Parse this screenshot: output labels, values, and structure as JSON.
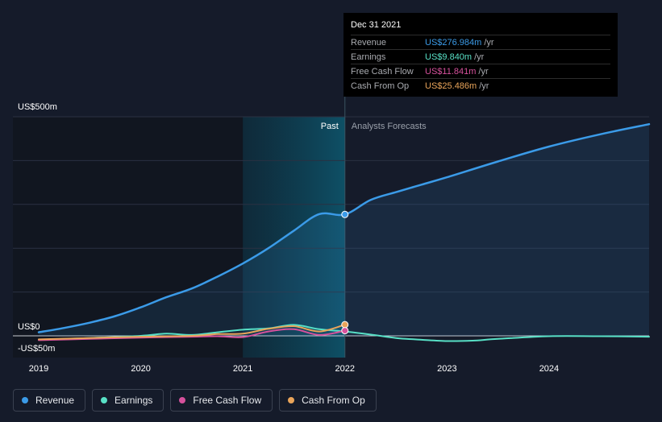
{
  "chart_data": {
    "type": "line",
    "x_range": [
      2019,
      2024.98
    ],
    "ylim": [
      -50,
      500
    ],
    "y_tick_labels": [
      {
        "value": 500,
        "label": "US$500m"
      },
      {
        "value": 0,
        "label": "US$0"
      },
      {
        "value": -50,
        "label": "-US$50m"
      }
    ],
    "x_ticks": [
      {
        "value": 2019,
        "label": "2019"
      },
      {
        "value": 2020,
        "label": "2020"
      },
      {
        "value": 2021,
        "label": "2021"
      },
      {
        "value": 2022,
        "label": "2022"
      },
      {
        "value": 2023,
        "label": "2023"
      },
      {
        "value": 2024,
        "label": "2024"
      }
    ],
    "past_label": "Past",
    "forecast_label": "Analysts Forecasts",
    "divider_x": 2022,
    "highlight_start": 2021,
    "series": [
      {
        "name": "Revenue",
        "color": "#3b9be8",
        "area": true,
        "points": [
          [
            2019,
            8
          ],
          [
            2019.25,
            18
          ],
          [
            2019.5,
            30
          ],
          [
            2019.75,
            45
          ],
          [
            2020,
            65
          ],
          [
            2020.25,
            88
          ],
          [
            2020.5,
            108
          ],
          [
            2020.75,
            135
          ],
          [
            2021,
            165
          ],
          [
            2021.25,
            200
          ],
          [
            2021.5,
            240
          ],
          [
            2021.75,
            278
          ],
          [
            2022,
            277
          ],
          [
            2022.25,
            310
          ],
          [
            2022.5,
            328
          ],
          [
            2022.75,
            345
          ],
          [
            2023,
            362
          ],
          [
            2023.5,
            398
          ],
          [
            2024,
            432
          ],
          [
            2024.5,
            460
          ],
          [
            2024.98,
            483
          ]
        ]
      },
      {
        "name": "Earnings",
        "color": "#58e0c6",
        "area": false,
        "points": [
          [
            2019,
            -9
          ],
          [
            2019.5,
            -5
          ],
          [
            2020,
            0
          ],
          [
            2020.25,
            5
          ],
          [
            2020.5,
            2
          ],
          [
            2020.75,
            8
          ],
          [
            2021,
            14
          ],
          [
            2021.25,
            17
          ],
          [
            2021.5,
            25
          ],
          [
            2021.75,
            15
          ],
          [
            2022,
            10
          ],
          [
            2022.25,
            3
          ],
          [
            2022.5,
            -5
          ],
          [
            2022.75,
            -9
          ],
          [
            2023,
            -12
          ],
          [
            2023.25,
            -11
          ],
          [
            2023.5,
            -7
          ],
          [
            2024,
            -1
          ],
          [
            2024.5,
            -1
          ],
          [
            2024.98,
            -2
          ]
        ]
      },
      {
        "name": "Free Cash Flow",
        "color": "#d6519c",
        "area": false,
        "points": [
          [
            2019,
            -10
          ],
          [
            2019.5,
            -7
          ],
          [
            2020,
            -4
          ],
          [
            2020.5,
            -2
          ],
          [
            2020.75,
            -1
          ],
          [
            2021,
            -3
          ],
          [
            2021.25,
            10
          ],
          [
            2021.5,
            15
          ],
          [
            2021.75,
            2
          ],
          [
            2022,
            11.8
          ]
        ]
      },
      {
        "name": "Cash From Op",
        "color": "#e9a45a",
        "area": false,
        "points": [
          [
            2019,
            -8
          ],
          [
            2019.5,
            -5
          ],
          [
            2020,
            -2
          ],
          [
            2020.5,
            0
          ],
          [
            2020.75,
            4
          ],
          [
            2021,
            5
          ],
          [
            2021.25,
            16
          ],
          [
            2021.5,
            22
          ],
          [
            2021.75,
            10
          ],
          [
            2022,
            25.5
          ]
        ]
      }
    ],
    "markers": [
      {
        "series": "Revenue",
        "x": 2022,
        "y": 277,
        "color": "#3b9be8"
      },
      {
        "series": "Cash From Op",
        "x": 2022,
        "y": 25.5,
        "color": "#e9a45a"
      },
      {
        "series": "Free Cash Flow",
        "x": 2022,
        "y": 11.8,
        "color": "#d6519c"
      }
    ]
  },
  "tooltip": {
    "date": "Dec 31 2021",
    "rows": [
      {
        "label": "Revenue",
        "value": "US$276.984m",
        "unit": "/yr",
        "color": "#3b9be8"
      },
      {
        "label": "Earnings",
        "value": "US$9.840m",
        "unit": "/yr",
        "color": "#58e0c6"
      },
      {
        "label": "Free Cash Flow",
        "value": "US$11.841m",
        "unit": "/yr",
        "color": "#d6519c"
      },
      {
        "label": "Cash From Op",
        "value": "US$25.486m",
        "unit": "/yr",
        "color": "#e9a45a"
      }
    ]
  },
  "legend": [
    {
      "label": "Revenue",
      "color": "#3b9be8"
    },
    {
      "label": "Earnings",
      "color": "#58e0c6"
    },
    {
      "label": "Free Cash Flow",
      "color": "#d6519c"
    },
    {
      "label": "Cash From Op",
      "color": "#e9a45a"
    }
  ]
}
